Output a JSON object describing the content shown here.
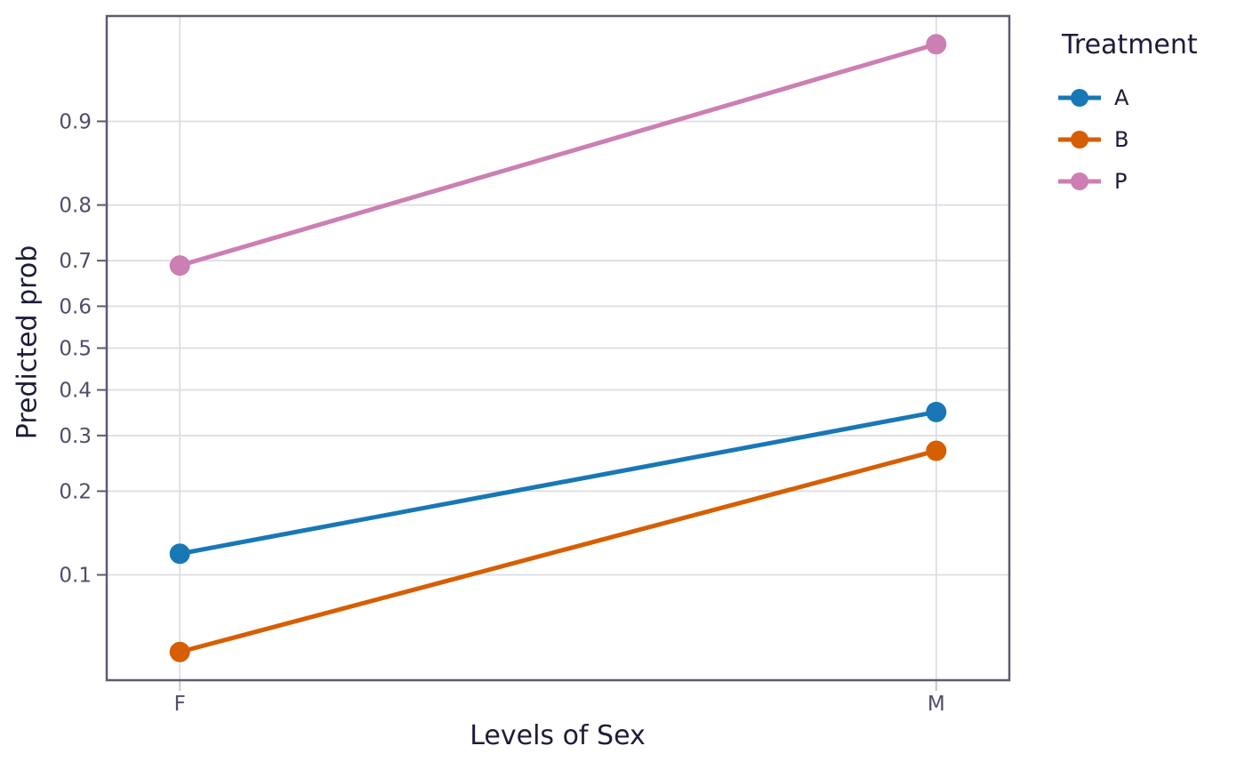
{
  "chart_data": {
    "type": "line",
    "title": "",
    "xlabel": "Levels of Sex",
    "ylabel": "Predicted prob",
    "categories": [
      "F",
      "M"
    ],
    "series": [
      {
        "name": "A",
        "color": "#1878b5",
        "values": [
          0.12,
          0.35
        ]
      },
      {
        "name": "B",
        "color": "#d55f02",
        "values": [
          0.05,
          0.27
        ]
      },
      {
        "name": "P",
        "color": "#cc7fb2",
        "values": [
          0.69,
          0.95
        ]
      }
    ],
    "y_scale": "logit",
    "y_ticks": [
      0.9,
      0.8,
      0.7,
      0.6,
      0.5,
      0.4,
      0.3,
      0.2,
      0.1
    ],
    "ylim": [
      0.0385,
      0.9615
    ],
    "grid": true,
    "legend": {
      "title": "Treatment",
      "position": "right",
      "items": [
        "A",
        "B",
        "P"
      ]
    }
  },
  "style": {
    "frame_color": "#5b5b72",
    "grid_color": "#dcdce4",
    "left_tick_color": "#5b5b72",
    "bottom_tick_color": "#c6c6cf",
    "tick_label_color": "#4e4e6a",
    "title_color": "#1c1c3a",
    "background": "#ffffff"
  }
}
